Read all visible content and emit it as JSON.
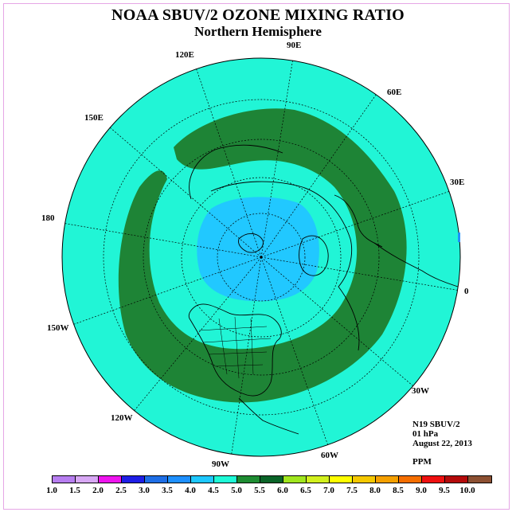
{
  "title": "NOAA SBUV/2 OZONE MIXING RATIO",
  "subtitle": "Northern Hemisphere",
  "longitude_labels": {
    "e90": "90E",
    "e120": "120E",
    "e60": "60E",
    "e150": "150E",
    "e30": "30E",
    "l180": "180",
    "l0": "0",
    "w150": "150W",
    "w30": "30W",
    "w120": "120W",
    "w60": "60W",
    "w90": "90W"
  },
  "info": {
    "instrument": "N19 SBUV/2",
    "level": "01 hPa",
    "date": "August 22, 2013"
  },
  "units": "PPM",
  "colorbar": {
    "ticks": [
      "1.0",
      "1.5",
      "2.0",
      "2.5",
      "3.0",
      "3.5",
      "4.0",
      "4.5",
      "5.0",
      "5.5",
      "6.0",
      "6.5",
      "7.0",
      "7.5",
      "8.0",
      "8.5",
      "9.0",
      "9.5",
      "10.0"
    ],
    "colors": [
      "#b77ef0",
      "#d8a8f5",
      "#ee14ee",
      "#1e1ee6",
      "#1e6ee6",
      "#1e90ff",
      "#1ec8ff",
      "#1efad7",
      "#1e8c32",
      "#0a6428",
      "#a0e61e",
      "#d2f01e",
      "#ffff00",
      "#f5c800",
      "#f5a000",
      "#f56e00",
      "#ee1010",
      "#b40a0a",
      "#8c5032"
    ]
  },
  "map": {
    "background_value_range": "4.5-5.0",
    "ring_value_range": "5.0-5.5",
    "core_value_range": "4.0-4.5",
    "ocean_fill": "#21f5d6",
    "ring_fill": "#1e8436",
    "core_fill": "#21c8ff"
  }
}
